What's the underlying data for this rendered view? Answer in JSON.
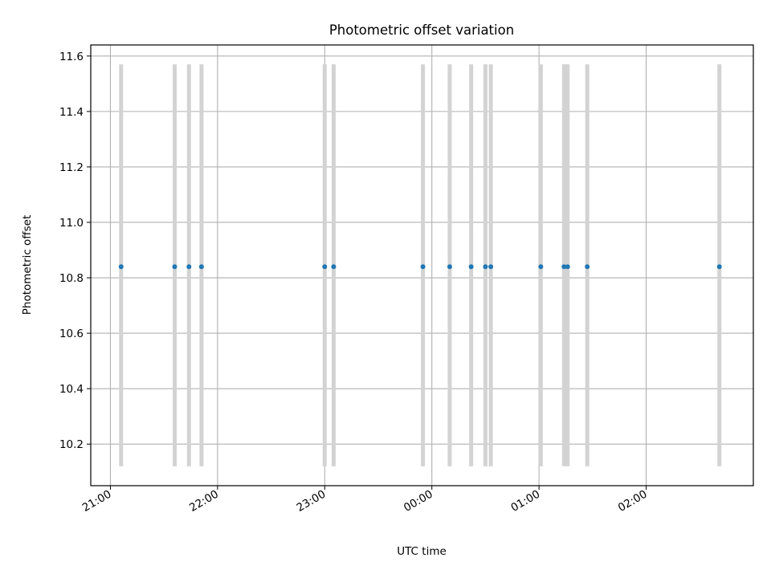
{
  "chart_data": {
    "type": "scatter",
    "title": "Photometric offset variation",
    "xlabel": "UTC time",
    "ylabel": "Photometric offset",
    "x_axis_type": "time",
    "xlim": [
      "20:49",
      "03:00"
    ],
    "ylim": [
      10.05,
      11.64
    ],
    "xticks": [
      "21:00",
      "22:00",
      "23:00",
      "00:00",
      "01:00",
      "02:00"
    ],
    "yticks": [
      "10.2",
      "10.4",
      "10.6",
      "10.8",
      "11.0",
      "11.2",
      "11.4",
      "11.6"
    ],
    "grid": true,
    "legend": "none",
    "series": [
      {
        "x": [
          "21:06",
          "21:36",
          "21:44",
          "21:51",
          "23:00",
          "23:05",
          "23:55",
          "00:10",
          "00:22",
          "00:30",
          "00:33",
          "01:01",
          "01:14",
          "01:16",
          "01:27",
          "02:41"
        ],
        "y": [
          10.84,
          10.84,
          10.84,
          10.84,
          10.84,
          10.84,
          10.84,
          10.84,
          10.84,
          10.84,
          10.84,
          10.84,
          10.84,
          10.84,
          10.84,
          10.84
        ],
        "band_low": 10.12,
        "band_high": 11.57,
        "color": "#1f77b4",
        "band_color": "#d3d3d3"
      }
    ]
  }
}
